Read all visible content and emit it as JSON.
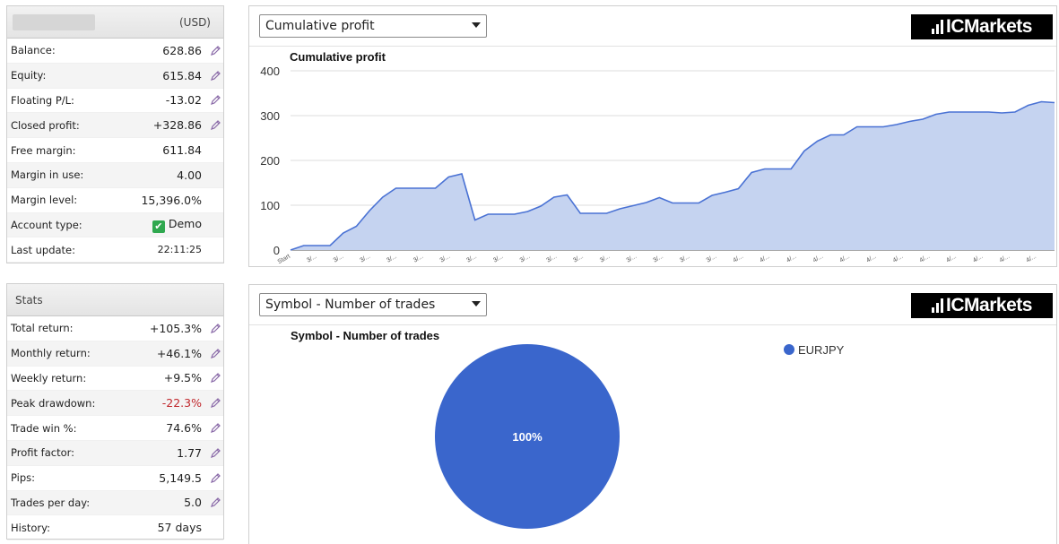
{
  "account": {
    "currency": "(USD)",
    "rows": [
      {
        "label": "Balance:",
        "value": "628.86",
        "tool": true
      },
      {
        "label": "Equity:",
        "value": "615.84",
        "tool": true
      },
      {
        "label": "Floating P/L:",
        "value": "-13.02",
        "tool": true
      },
      {
        "label": "Closed profit:",
        "value": "+328.86",
        "tool": true
      },
      {
        "label": "Free margin:",
        "value": "611.84",
        "tool": false
      },
      {
        "label": "Margin in use:",
        "value": "4.00",
        "tool": false
      },
      {
        "label": "Margin level:",
        "value": "15,396.0%",
        "tool": false
      },
      {
        "label": "Account type:",
        "value": "Demo",
        "tool": false,
        "check": true
      },
      {
        "label": "Last update:",
        "value": "22:11:25",
        "tool": false,
        "small": true
      }
    ]
  },
  "stats": {
    "title": "Stats",
    "rows": [
      {
        "label": "Total return:",
        "value": "+105.3%",
        "tool": true
      },
      {
        "label": "Monthly return:",
        "value": "+46.1%",
        "tool": true
      },
      {
        "label": "Weekly return:",
        "value": "+9.5%",
        "tool": true
      },
      {
        "label": "Peak drawdown:",
        "value": "-22.3%",
        "tool": true,
        "red": true
      },
      {
        "label": "Trade win %:",
        "value": "74.6%",
        "tool": true
      },
      {
        "label": "Profit factor:",
        "value": "1.77",
        "tool": true
      },
      {
        "label": "Pips:",
        "value": "5,149.5",
        "tool": true
      },
      {
        "label": "Trades per day:",
        "value": "5.0",
        "tool": true
      },
      {
        "label": "History:",
        "value": "57 days",
        "tool": false
      }
    ]
  },
  "brand": {
    "logo_text_a": "IC",
    "logo_text_b": "Markets"
  },
  "profit_panel": {
    "select_value": "Cumulative profit",
    "chart_title": "Cumulative profit"
  },
  "pie_panel": {
    "select_value": "Symbol - Number of trades",
    "chart_title": "Symbol - Number of trades"
  },
  "colors": {
    "area_fill": "#c5d3f0",
    "area_line": "#4a72d4",
    "pie": "#3a66cc",
    "red": "#c0262b"
  },
  "chart_data": [
    {
      "type": "area",
      "title": "Cumulative profit",
      "ylim": [
        0,
        400
      ],
      "yticks": [
        0,
        100,
        200,
        300,
        400
      ],
      "grid": true,
      "x_tick_labels": [
        "Start",
        "3/...",
        "3/...",
        "3/...",
        "3/...",
        "3/...",
        "3/...",
        "3/...",
        "3/...",
        "3/...",
        "3/...",
        "3/...",
        "3/...",
        "3/...",
        "3/...",
        "3/...",
        "3/...",
        "4/...",
        "4/...",
        "4/...",
        "4/...",
        "4/...",
        "4/...",
        "4/...",
        "4/...",
        "4/...",
        "4/...",
        "4/...",
        "4/..."
      ],
      "values": [
        0,
        10,
        10,
        10,
        38,
        53,
        88,
        118,
        138,
        138,
        138,
        138,
        163,
        170,
        67,
        80,
        80,
        80,
        86,
        98,
        118,
        123,
        82,
        82,
        82,
        92,
        99,
        106,
        117,
        105,
        105,
        105,
        122,
        129,
        137,
        173,
        181,
        181,
        181,
        221,
        243,
        257,
        257,
        275,
        275,
        275,
        280,
        287,
        292,
        303,
        308,
        308,
        308,
        308,
        306,
        308,
        323,
        331,
        329
      ]
    },
    {
      "type": "pie",
      "title": "Symbol - Number of trades",
      "slices": [
        {
          "label": "EURJPY",
          "value": 100
        }
      ],
      "slice_labels": [
        "100%"
      ],
      "legend": "top-right"
    }
  ]
}
